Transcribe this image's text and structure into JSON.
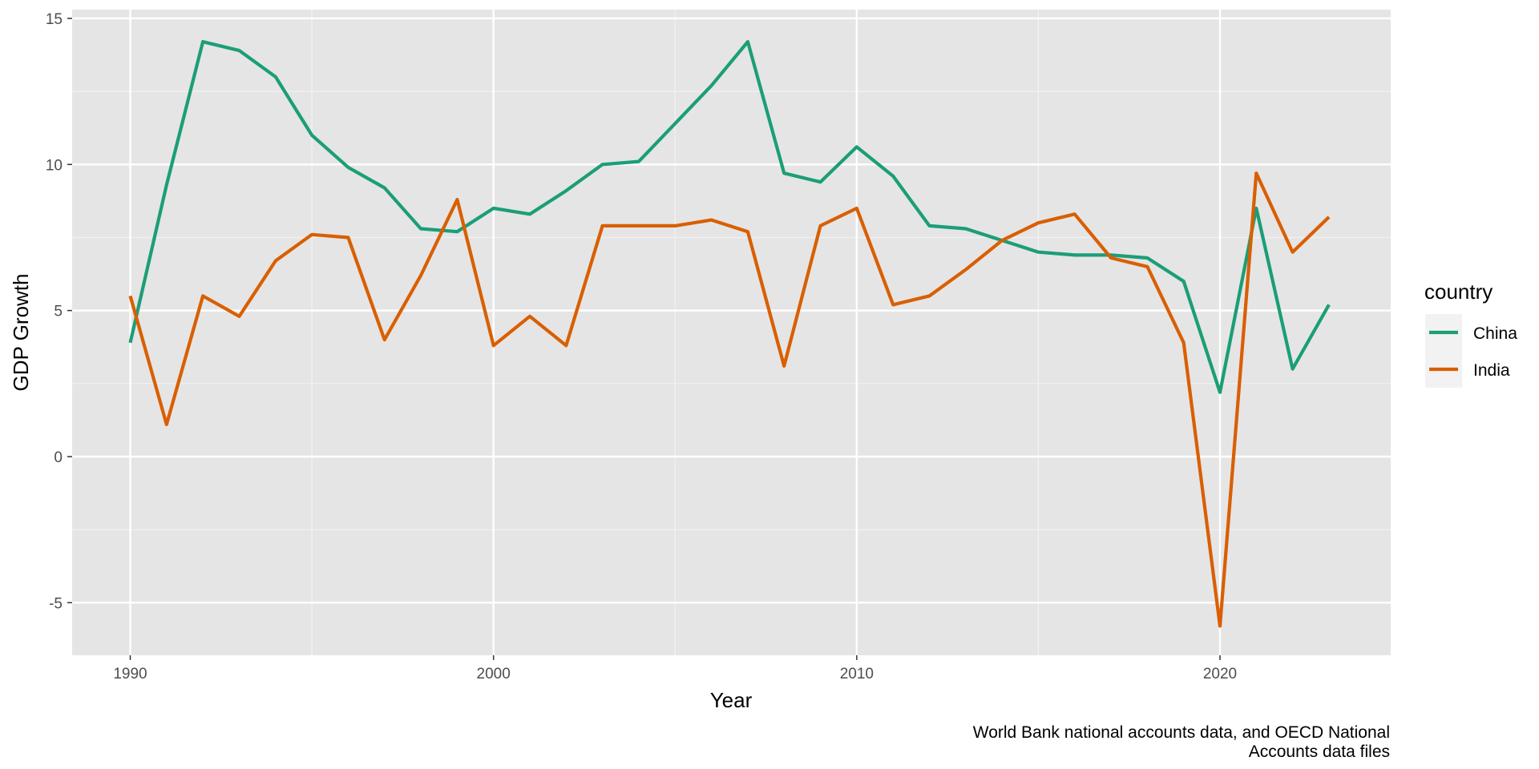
{
  "chart_data": {
    "type": "line",
    "title": "",
    "xlabel": "Year",
    "ylabel": "GDP Growth",
    "caption_lines": [
      "World Bank national accounts data, and OECD National",
      "Accounts data files"
    ],
    "xlim": [
      1988.4,
      2024.7
    ],
    "ylim": [
      -6.8,
      15.3
    ],
    "x_ticks": [
      1990,
      2000,
      2010,
      2020
    ],
    "x_tick_labels": [
      "1990",
      "2000",
      "2010",
      "2020"
    ],
    "x_minor_ticks": [
      1995,
      2005,
      2015
    ],
    "y_ticks": [
      -5,
      0,
      5,
      10,
      15
    ],
    "y_tick_labels": [
      "-5",
      "0",
      "5",
      "10",
      "15"
    ],
    "y_minor_ticks": [
      -2.5,
      2.5,
      7.5,
      12.5
    ],
    "grid": true,
    "legend": {
      "title": "country",
      "position": "right"
    },
    "x": [
      1990,
      1991,
      1992,
      1993,
      1994,
      1995,
      1996,
      1997,
      1998,
      1999,
      2000,
      2001,
      2002,
      2003,
      2004,
      2005,
      2006,
      2007,
      2008,
      2009,
      2010,
      2011,
      2012,
      2013,
      2014,
      2015,
      2016,
      2017,
      2018,
      2019,
      2020,
      2021,
      2022,
      2023
    ],
    "series": [
      {
        "name": "China",
        "color": "#1b9e77",
        "values": [
          3.9,
          9.3,
          14.2,
          13.9,
          13.0,
          11.0,
          9.9,
          9.2,
          7.8,
          7.7,
          8.5,
          8.3,
          9.1,
          10.0,
          10.1,
          11.4,
          12.7,
          14.2,
          9.7,
          9.4,
          10.6,
          9.6,
          7.9,
          7.8,
          7.4,
          7.0,
          6.9,
          6.9,
          6.8,
          6.0,
          2.2,
          8.5,
          3.0,
          5.2
        ]
      },
      {
        "name": "India",
        "color": "#d95f02",
        "values": [
          5.5,
          1.1,
          5.5,
          4.8,
          6.7,
          7.6,
          7.5,
          4.0,
          6.2,
          8.8,
          3.8,
          4.8,
          3.8,
          7.9,
          7.9,
          7.9,
          8.1,
          7.7,
          3.1,
          7.9,
          8.5,
          5.2,
          5.5,
          6.4,
          7.4,
          8.0,
          8.3,
          6.8,
          6.5,
          3.9,
          -5.8,
          9.7,
          7.0,
          8.2
        ]
      }
    ]
  }
}
